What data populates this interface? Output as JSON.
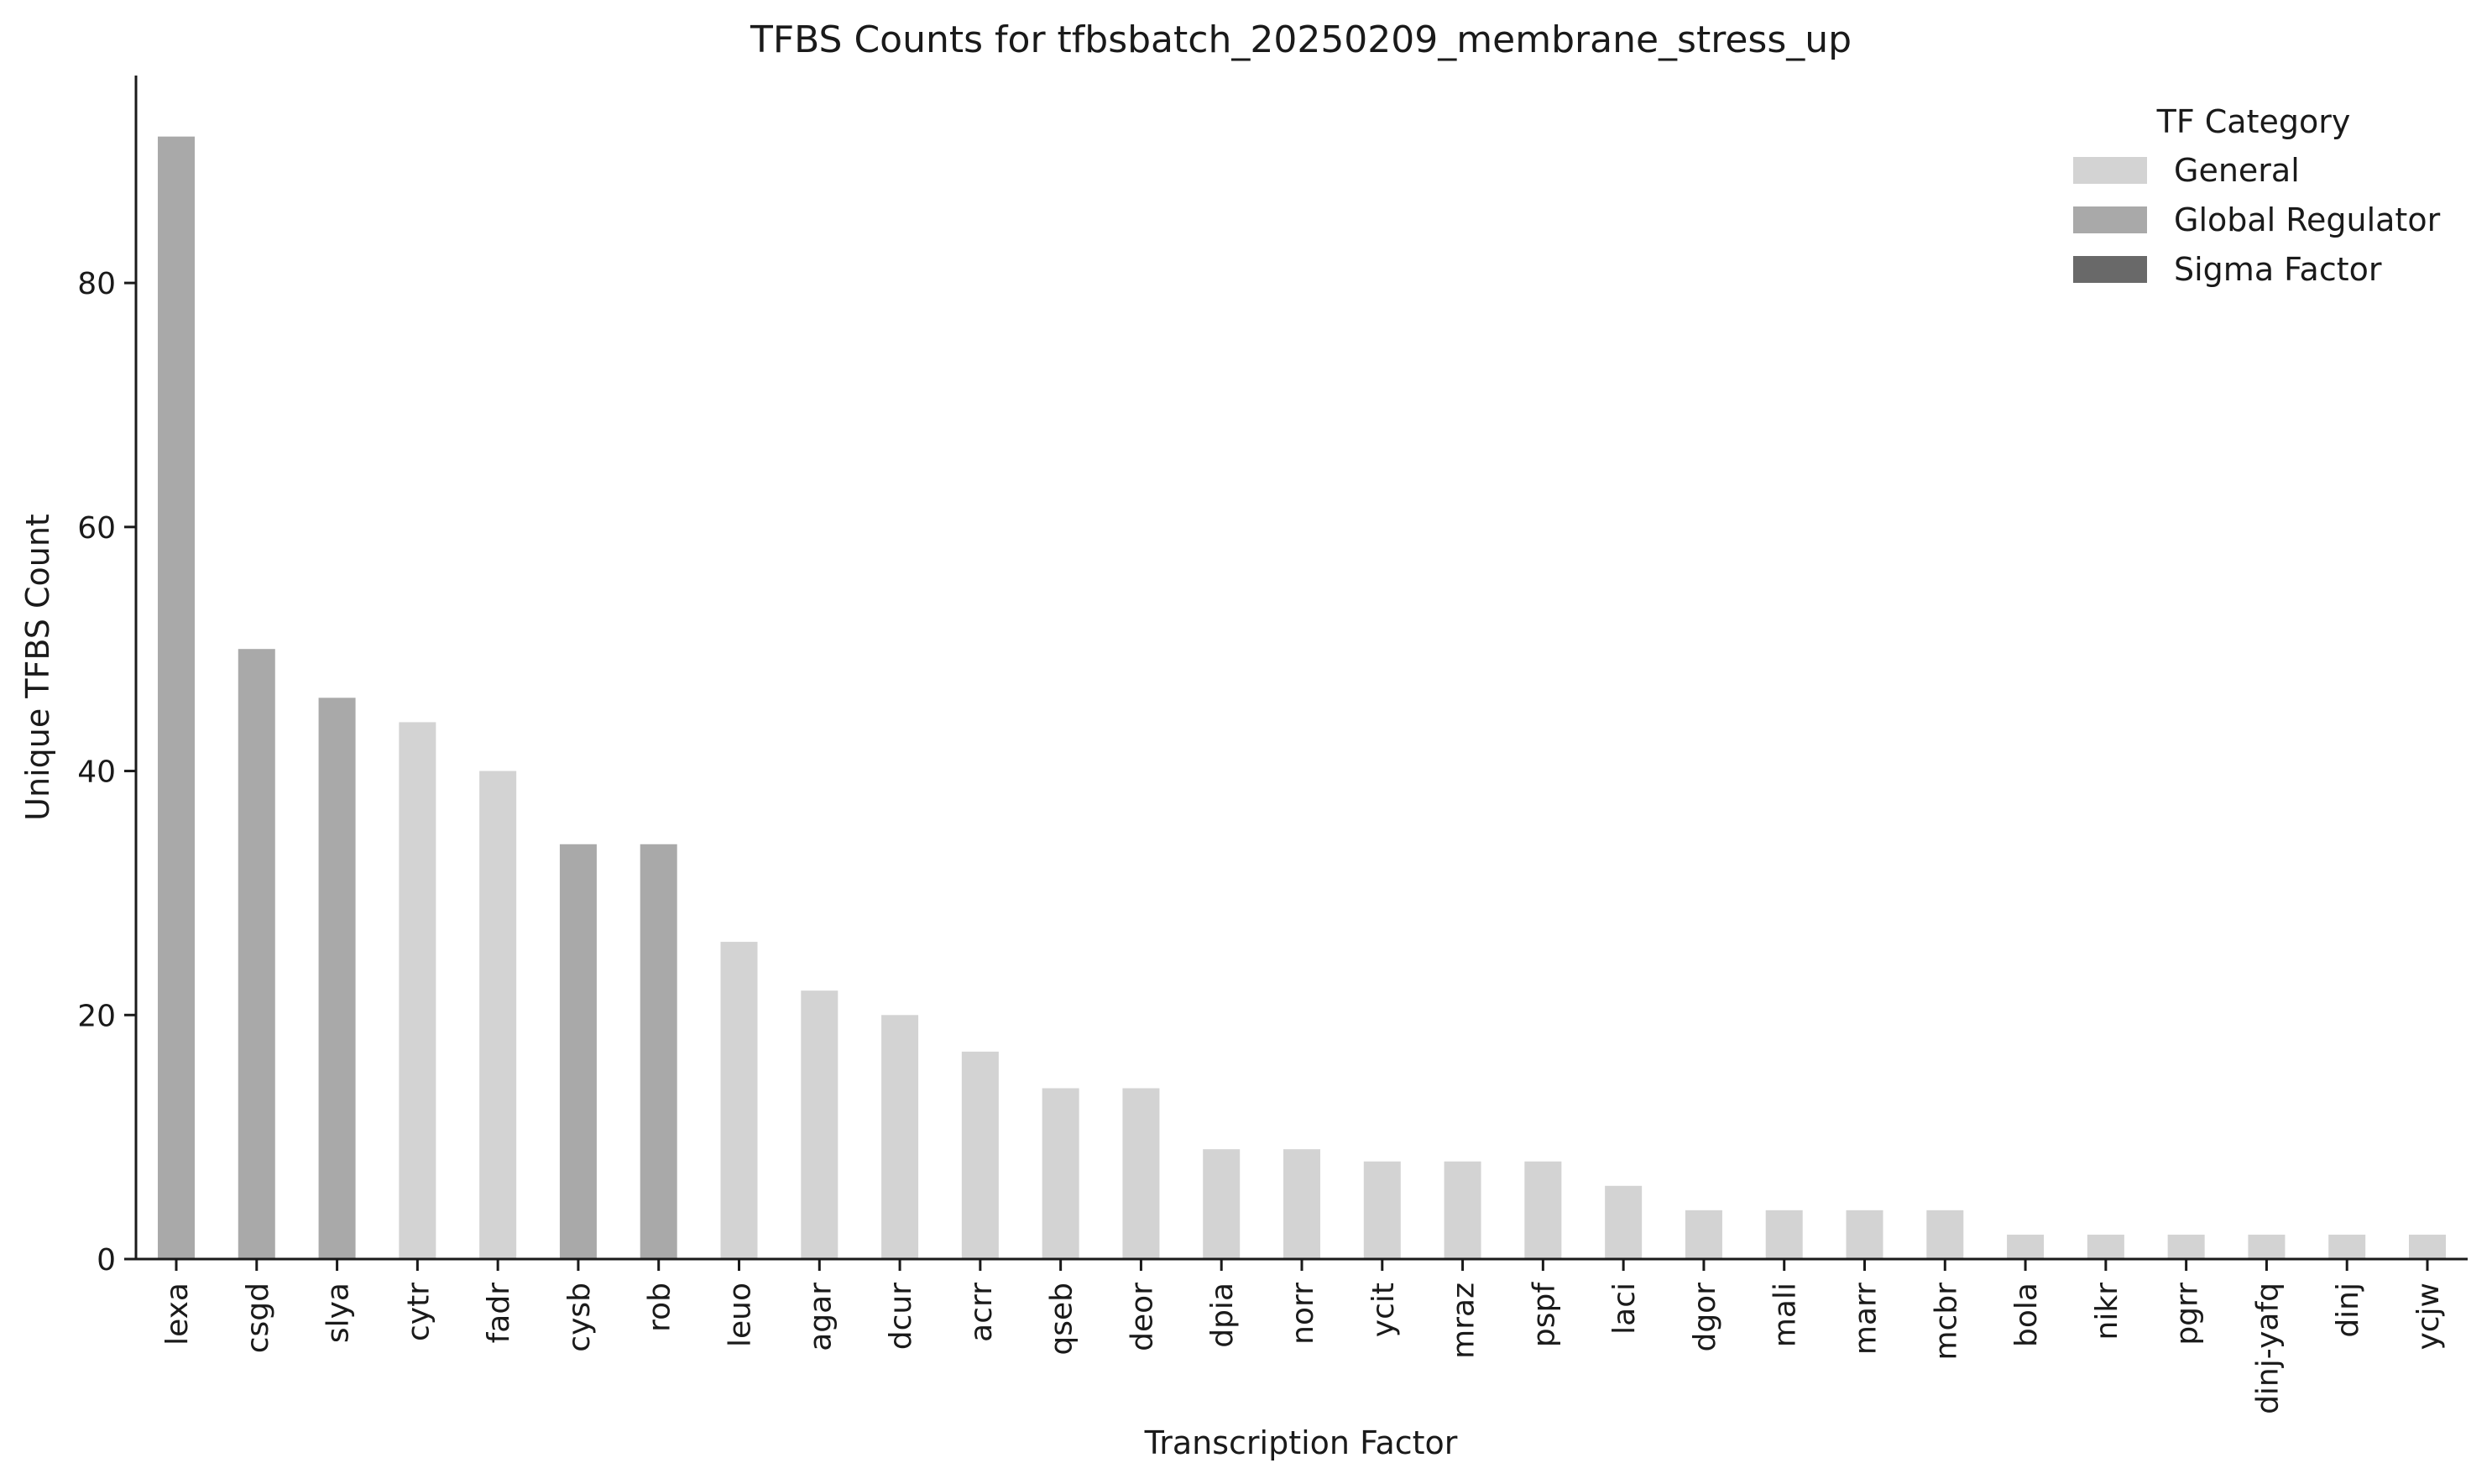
{
  "chart_data": {
    "type": "bar",
    "title": "TFBS Counts for tfbsbatch_20250209_membrane_stress_up",
    "xlabel": "Transcription Factor",
    "ylabel": "Unique TFBS Count",
    "ylim": [
      0,
      97
    ],
    "yticks": [
      0,
      20,
      40,
      60,
      80
    ],
    "grid": false,
    "legend": {
      "title": "TF Category",
      "placement": "top-right",
      "entries": [
        {
          "label": "General",
          "color": "#d3d3d3"
        },
        {
          "label": "Global Regulator",
          "color": "#a9a9a9"
        },
        {
          "label": "Sigma Factor",
          "color": "#696969"
        }
      ]
    },
    "categories": [
      "lexa",
      "csgd",
      "slya",
      "cytr",
      "fadr",
      "cysb",
      "rob",
      "leuo",
      "agar",
      "dcur",
      "acrr",
      "qseb",
      "deor",
      "dpia",
      "norr",
      "ycit",
      "mraz",
      "pspf",
      "laci",
      "dgor",
      "mali",
      "marr",
      "mcbr",
      "bola",
      "nikr",
      "pgrr",
      "dinj-yafq",
      "dinj",
      "ycjw"
    ],
    "values": [
      92,
      50,
      46,
      44,
      40,
      34,
      34,
      26,
      22,
      20,
      17,
      14,
      14,
      9,
      9,
      8,
      8,
      8,
      6,
      4,
      4,
      4,
      4,
      2,
      2,
      2,
      2,
      2,
      2
    ],
    "bar_categories": [
      "Global Regulator",
      "Global Regulator",
      "Global Regulator",
      "General",
      "General",
      "Global Regulator",
      "Global Regulator",
      "General",
      "General",
      "General",
      "General",
      "General",
      "General",
      "General",
      "General",
      "General",
      "General",
      "General",
      "General",
      "General",
      "General",
      "General",
      "General",
      "General",
      "General",
      "General",
      "General",
      "General",
      "General"
    ]
  }
}
